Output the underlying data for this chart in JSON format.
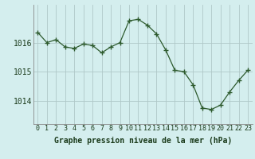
{
  "x": [
    0,
    1,
    2,
    3,
    4,
    5,
    6,
    7,
    8,
    9,
    10,
    11,
    12,
    13,
    14,
    15,
    16,
    17,
    18,
    19,
    20,
    21,
    22,
    23
  ],
  "y": [
    1016.35,
    1016.0,
    1016.1,
    1015.85,
    1015.8,
    1015.95,
    1015.9,
    1015.65,
    1015.85,
    1016.0,
    1016.75,
    1016.8,
    1016.6,
    1016.3,
    1015.75,
    1015.05,
    1015.0,
    1014.55,
    1013.75,
    1013.7,
    1013.85,
    1014.3,
    1014.7,
    1015.05
  ],
  "line_color": "#2d5a2d",
  "marker": "+",
  "marker_size": 4,
  "bg_color": "#d4eeee",
  "grid_color": "#b0c8c8",
  "xlabel": "Graphe pression niveau de la mer (hPa)",
  "xlabel_fontsize": 7,
  "tick_fontsize": 6,
  "yticks": [
    1014,
    1015,
    1016
  ],
  "ylim": [
    1013.2,
    1017.3
  ],
  "xlim": [
    -0.5,
    23.5
  ],
  "xticks": [
    0,
    1,
    2,
    3,
    4,
    5,
    6,
    7,
    8,
    9,
    10,
    11,
    12,
    13,
    14,
    15,
    16,
    17,
    18,
    19,
    20,
    21,
    22,
    23
  ]
}
